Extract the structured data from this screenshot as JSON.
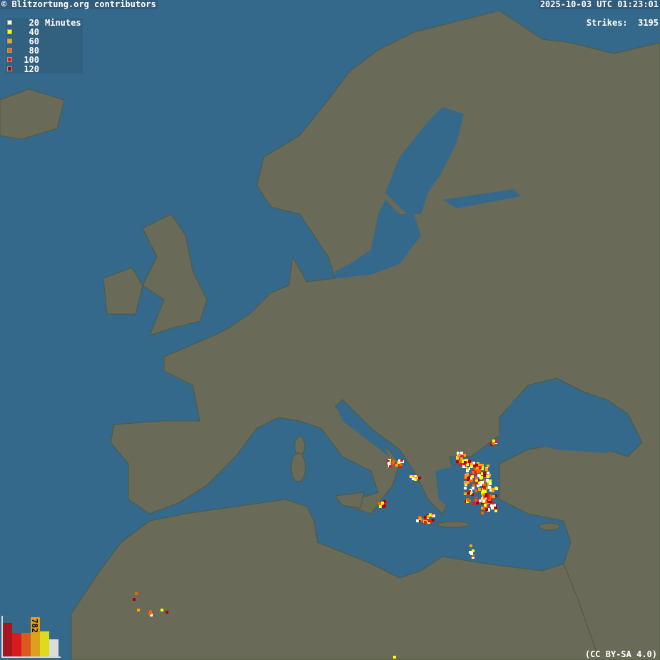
{
  "header": {
    "credit": "© Blitzortung.org contributors",
    "timestamp": "2025-10-03 UTC 01:23:01",
    "strikes_label": "Strikes:",
    "strikes_count": "3195"
  },
  "legend": {
    "unit": "Minutes",
    "items": [
      {
        "value": "20",
        "color": "#ffffff"
      },
      {
        "value": "40",
        "color": "#ffff00"
      },
      {
        "value": "60",
        "color": "#ffa500"
      },
      {
        "value": "80",
        "color": "#ff6000"
      },
      {
        "value": "100",
        "color": "#ff1010"
      },
      {
        "value": "120",
        "color": "#b00000"
      }
    ]
  },
  "histogram": {
    "label": "782",
    "bars": [
      {
        "value": 668,
        "color": "#a8161e"
      },
      {
        "value": 470,
        "color": "#da1a20"
      },
      {
        "value": 470,
        "color": "#dc5a1e"
      },
      {
        "value": 782,
        "color": "#dca01c"
      },
      {
        "value": 500,
        "color": "#dcdc1c"
      },
      {
        "value": 340,
        "color": "#dcdcd8"
      }
    ]
  },
  "colors": {
    "sea": "#34698c",
    "land": "#696a58",
    "border": "#c8c8c8"
  },
  "license": "(CC BY-SA 4.0)"
}
